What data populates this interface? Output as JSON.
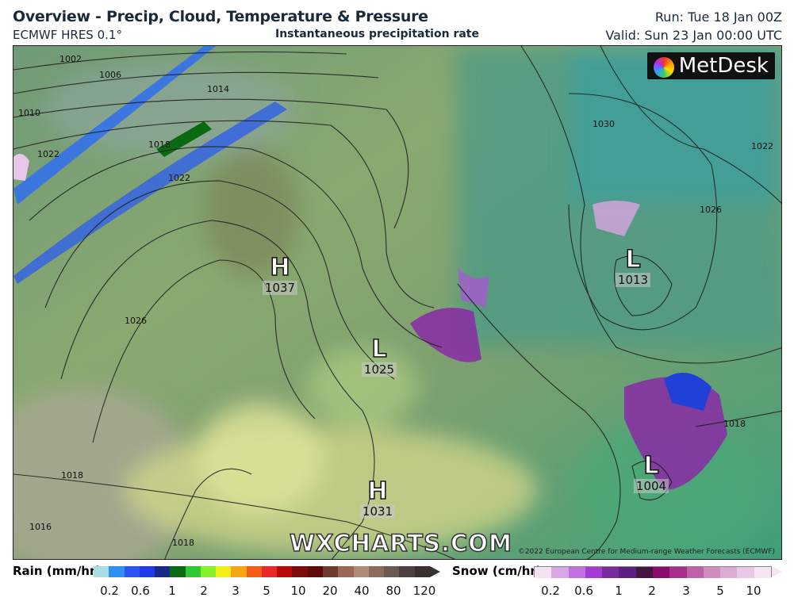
{
  "header": {
    "title": "Overview - Precip, Cloud, Temperature & Pressure",
    "model": "ECMWF HRES 0.1°",
    "subtitle": "Instantaneous precipitation rate",
    "run": "Run: Tue 18 Jan 00Z",
    "valid": "Valid: Sun 23 Jan 00:00 UTC"
  },
  "map": {
    "logo": "MetDesk",
    "watermark": "WXCHARTS.COM",
    "copyright": "©2022 European Centre for Medium-range Weather Forecasts (ECMWF)",
    "pressure_centres": [
      {
        "type": "H",
        "value": "1037"
      },
      {
        "type": "L",
        "value": "1025"
      },
      {
        "type": "H",
        "value": "1031"
      },
      {
        "type": "L",
        "value": "1013"
      },
      {
        "type": "L",
        "value": "1004"
      }
    ],
    "isobar_labels": [
      "1002",
      "1006",
      "1010",
      "1014",
      "1018",
      "1022",
      "1026",
      "1030",
      "1022",
      "1026",
      "1018",
      "1022",
      "1018",
      "1018",
      "1016"
    ]
  },
  "legend": {
    "rain": {
      "label": "Rain (mm/hr)",
      "ticks": [
        "0.2",
        "0.6",
        "1",
        "2",
        "3",
        "5",
        "10",
        "20",
        "40",
        "80",
        "120"
      ],
      "colors": [
        "#a9dde6",
        "#2f8ff0",
        "#2b55f2",
        "#1f3ae6",
        "#18298a",
        "#0a6a12",
        "#30c833",
        "#86f02a",
        "#f2ee18",
        "#f7a514",
        "#f25c16",
        "#e62a2a",
        "#b80c0c",
        "#7e0b0b",
        "#5c0a0a",
        "#6e3a30",
        "#9a6656",
        "#b08a74",
        "#8a6c5a",
        "#6a5a52",
        "#4e4040",
        "#3a3030"
      ]
    },
    "snow": {
      "label": "Snow (cm/hr)",
      "ticks": [
        "0.2",
        "0.6",
        "1",
        "2",
        "3",
        "5",
        "10"
      ],
      "colors": [
        "#f2e2f2",
        "#d9a6e6",
        "#c070e0",
        "#a63ad6",
        "#7a2aa0",
        "#5e1e84",
        "#42163e",
        "#8c0a6e",
        "#a8308c",
        "#c060a8",
        "#d08cc0",
        "#dcaad2",
        "#e8c8e4",
        "#f4e6f4"
      ]
    }
  }
}
